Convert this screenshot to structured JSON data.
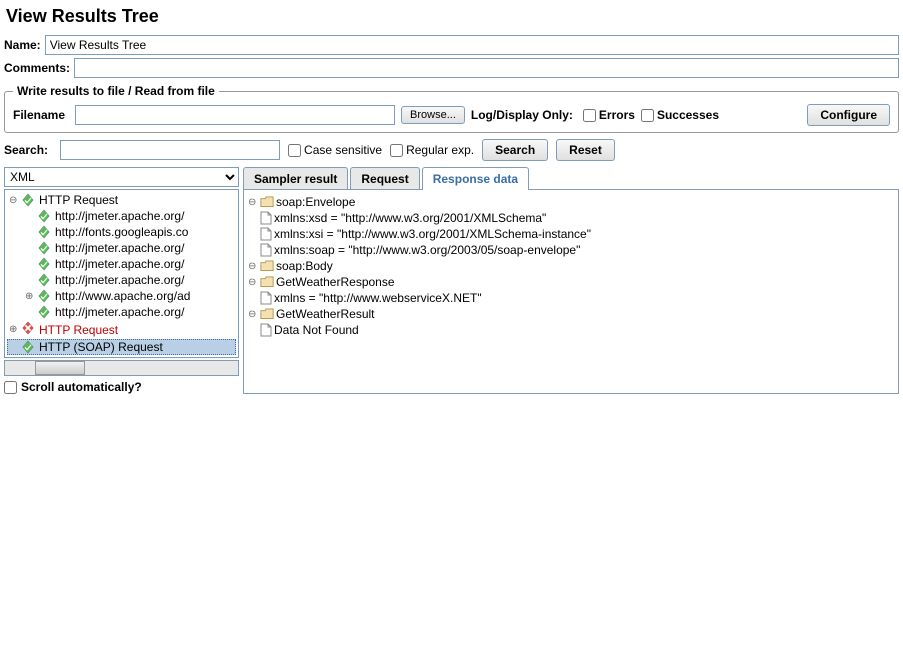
{
  "panel": {
    "title": "View Results Tree",
    "name_label": "Name:",
    "name_value": "View Results Tree",
    "comments_label": "Comments:",
    "comments_value": ""
  },
  "file_section": {
    "legend": "Write results to file / Read from file",
    "filename_label": "Filename",
    "filename_value": "",
    "browse": "Browse...",
    "logdisplay_label": "Log/Display Only:",
    "errors": "Errors",
    "successes": "Successes",
    "configure": "Configure"
  },
  "search": {
    "label": "Search:",
    "value": "",
    "case_sensitive": "Case sensitive",
    "regex": "Regular exp.",
    "search_btn": "Search",
    "reset_btn": "Reset"
  },
  "format": {
    "selected": "XML"
  },
  "left_tree": {
    "nodes": [
      {
        "label": "HTTP Request",
        "status": "ok",
        "expandable": true,
        "indent": 0,
        "toggle": "open"
      },
      {
        "label": "http://jmeter.apache.org/",
        "status": "ok",
        "expandable": false,
        "indent": 1
      },
      {
        "label": "http://fonts.googleapis.co",
        "status": "ok",
        "expandable": false,
        "indent": 1
      },
      {
        "label": "http://jmeter.apache.org/",
        "status": "ok",
        "expandable": false,
        "indent": 1
      },
      {
        "label": "http://jmeter.apache.org/",
        "status": "ok",
        "expandable": false,
        "indent": 1
      },
      {
        "label": "http://jmeter.apache.org/",
        "status": "ok",
        "expandable": false,
        "indent": 1
      },
      {
        "label": "http://www.apache.org/ad",
        "status": "ok",
        "expandable": true,
        "indent": 1,
        "toggle": "closed"
      },
      {
        "label": "http://jmeter.apache.org/",
        "status": "ok",
        "expandable": false,
        "indent": 1
      },
      {
        "label": "HTTP Request",
        "status": "err",
        "expandable": true,
        "indent": 0,
        "toggle": "closed"
      },
      {
        "label": "HTTP (SOAP) Request",
        "status": "ok",
        "expandable": false,
        "indent": 0,
        "selected": true
      }
    ],
    "scroll_auto": "Scroll automatically?"
  },
  "tabs": {
    "items": [
      {
        "label": "Sampler result",
        "active": false
      },
      {
        "label": "Request",
        "active": false
      },
      {
        "label": "Response data",
        "active": true
      }
    ]
  },
  "xml_tree": {
    "nodes": [
      {
        "label": "soap:Envelope",
        "icon": "folder",
        "indent": 0,
        "toggle": "open"
      },
      {
        "label": "xmlns:xsd = \"http://www.w3.org/2001/XMLSchema\"",
        "icon": "file",
        "indent": 1
      },
      {
        "label": "xmlns:xsi = \"http://www.w3.org/2001/XMLSchema-instance\"",
        "icon": "file",
        "indent": 1
      },
      {
        "label": "xmlns:soap = \"http://www.w3.org/2003/05/soap-envelope\"",
        "icon": "file",
        "indent": 1
      },
      {
        "label": "soap:Body",
        "icon": "folder",
        "indent": 1,
        "toggle": "open"
      },
      {
        "label": "GetWeatherResponse",
        "icon": "folder",
        "indent": 2,
        "toggle": "open"
      },
      {
        "label": "xmlns = \"http://www.webserviceX.NET\"",
        "icon": "file",
        "indent": 3
      },
      {
        "label": "GetWeatherResult",
        "icon": "folder",
        "indent": 3,
        "toggle": "open"
      },
      {
        "label": "Data Not Found",
        "icon": "file",
        "indent": 4
      }
    ]
  },
  "colors": {
    "border": "#7f9db9",
    "selection": "#b8cfe5",
    "error_text": "#c00000",
    "ok_green": "#5cb85c",
    "err_red": "#d9534f",
    "folder": "#d9b36c"
  }
}
